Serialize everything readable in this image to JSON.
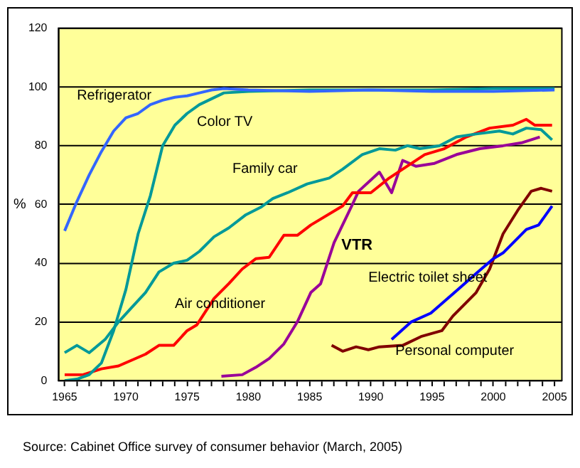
{
  "chart_data": {
    "type": "line",
    "ylabel": "%",
    "annotations": [
      "Source: Cabinet Office survey of consumer behavior (March, 2005)"
    ],
    "xlim": [
      1964.5,
      2005.6
    ],
    "ylim": [
      0,
      120
    ],
    "yticks": [
      0,
      20,
      40,
      60,
      80,
      100,
      120
    ],
    "xticks": [
      1965,
      {
        "value": 1966,
        "label": null
      },
      {
        "value": 1967,
        "label": null
      },
      {
        "value": 1968,
        "label": null
      },
      {
        "value": 1969,
        "label": null
      },
      1970,
      {
        "value": 1971,
        "label": null
      },
      {
        "value": 1972,
        "label": null
      },
      {
        "value": 1973,
        "label": null
      },
      {
        "value": 1974,
        "label": null
      },
      1975,
      {
        "value": 1976,
        "label": null
      },
      {
        "value": 1977,
        "label": null
      },
      {
        "value": 1978,
        "label": null
      },
      {
        "value": 1979,
        "label": null
      },
      1980,
      {
        "value": 1981,
        "label": null
      },
      {
        "value": 1982,
        "label": null
      },
      {
        "value": 1983,
        "label": null
      },
      {
        "value": 1984,
        "label": null
      },
      1985,
      {
        "value": 1986,
        "label": null
      },
      {
        "value": 1987,
        "label": null
      },
      {
        "value": 1988,
        "label": null
      },
      {
        "value": 1989,
        "label": null
      },
      1990,
      {
        "value": 1991,
        "label": null
      },
      {
        "value": 1992,
        "label": null
      },
      {
        "value": 1993,
        "label": null
      },
      {
        "value": 1994,
        "label": null
      },
      1995,
      {
        "value": 1996,
        "label": null
      },
      {
        "value": 1997,
        "label": null
      },
      {
        "value": 1998,
        "label": null
      },
      {
        "value": 1999,
        "label": null
      },
      2000,
      {
        "value": 2001,
        "label": null
      },
      {
        "value": 2002,
        "label": null
      },
      {
        "value": 2003,
        "label": null
      },
      {
        "value": 2004,
        "label": null
      },
      2005
    ],
    "grid": "y",
    "legend": false,
    "marker": "none",
    "line_style": "solid",
    "series": [
      {
        "name": "Refrigerator",
        "color": "#3366ff",
        "x": [
          1965,
          1966,
          1967,
          1968,
          1969,
          1970,
          1971,
          1972,
          1973,
          1974,
          1975,
          1976,
          1977,
          1978,
          1980,
          1985,
          1990,
          1995,
          2000,
          2005
        ],
        "values": [
          51,
          61,
          70,
          78,
          85,
          89.5,
          91,
          94,
          95.5,
          96.5,
          97,
          98,
          99,
          99.5,
          99,
          98.5,
          99,
          98.5,
          98.5,
          99
        ]
      },
      {
        "name": "Color TV",
        "color": "#009999",
        "x": [
          1965,
          1966,
          1967,
          1968,
          1969,
          1970,
          1971,
          1972,
          1973,
          1974,
          1975,
          1976,
          1977,
          1978,
          1980,
          1985,
          1990,
          1995,
          2000,
          2005
        ],
        "values": [
          0,
          0.5,
          2,
          6,
          17,
          31,
          50,
          63,
          80,
          87,
          91,
          94,
          96,
          98,
          98.5,
          99,
          99,
          99,
          99.5,
          99.5
        ]
      },
      {
        "name": "Family car",
        "color": "#009999",
        "x": [
          1965,
          1966,
          1967,
          1968.3,
          1969.4,
          1970.5,
          1971.6,
          1972.7,
          1973.9,
          1975,
          1976,
          1977.2,
          1978.4,
          1979.8,
          1981,
          1982,
          1983.2,
          1984.8,
          1986.6,
          1987.7,
          1989.3,
          1990.7,
          1992,
          1993,
          1994,
          1995.6,
          1997,
          1998.6,
          2000.5,
          2001.6,
          2002.7,
          2003.9,
          2004.8
        ],
        "values": [
          9.5,
          12,
          9.5,
          14,
          20,
          25,
          30,
          37,
          40,
          41,
          44,
          49,
          52,
          56.5,
          59,
          62,
          64,
          67,
          69,
          72,
          77,
          79,
          78.5,
          80,
          79,
          80,
          83,
          84,
          85,
          84,
          86,
          85.5,
          82
        ]
      },
      {
        "name": "Air conditioner",
        "color": "#ff0000",
        "x": [
          1965,
          1966.5,
          1968,
          1969.4,
          1970.5,
          1971.6,
          1972.7,
          1973.9,
          1975,
          1975.8,
          1977.2,
          1978.4,
          1979.5,
          1980.6,
          1981.7,
          1982.9,
          1984,
          1985.1,
          1987.7,
          1988.5,
          1990,
          1991.5,
          1994.4,
          1996,
          1997.8,
          1999.7,
          2001.6,
          2002.7,
          2003.4,
          2004.8
        ],
        "values": [
          2,
          2,
          4,
          5,
          7,
          9,
          12,
          12,
          17,
          19,
          28,
          33,
          38,
          41.5,
          42,
          49.5,
          49.5,
          53,
          59.5,
          64,
          64,
          69,
          77,
          79,
          83,
          86,
          87,
          89,
          87,
          87
        ]
      },
      {
        "name": "VTR",
        "color": "#990099",
        "x": [
          1977.8,
          1979.5,
          1980.6,
          1981.7,
          1982.9,
          1984,
          1985.1,
          1985.9,
          1987,
          1988.5,
          1989,
          1990.7,
          1991.7,
          1992.6,
          1993.7,
          1995.2,
          1997,
          1998.9,
          2000.8,
          2002.3,
          2003.8
        ],
        "values": [
          1.5,
          2,
          4.5,
          7.5,
          12.5,
          20,
          30,
          33,
          47,
          60,
          64.5,
          71,
          64,
          75,
          73,
          74,
          77,
          79,
          80,
          81,
          83
        ]
      },
      {
        "name": "Electric toilet sheet",
        "color": "#0000ff",
        "x": [
          1991.7,
          1993.3,
          1994.9,
          1996,
          1997.1,
          1998.6,
          2000,
          2000.8,
          2002.7,
          2003.7,
          2004.8
        ],
        "values": [
          14,
          20,
          23,
          27,
          31,
          36.5,
          41.5,
          43.5,
          51.5,
          53,
          59.5
        ]
      },
      {
        "name": "Personal computer",
        "color": "#800000",
        "x": [
          1986.8,
          1987.7,
          1988.8,
          1989.8,
          1990.7,
          1992.6,
          1994.1,
          1995.8,
          1996.7,
          1998.6,
          1999.7,
          2000.8,
          2002,
          2003.1,
          2003.9,
          2004.8
        ],
        "values": [
          12,
          10,
          11.5,
          10.5,
          11.5,
          12,
          15,
          17,
          22,
          30,
          38,
          50,
          58,
          64.5,
          65.5,
          64.5
        ]
      }
    ]
  }
}
